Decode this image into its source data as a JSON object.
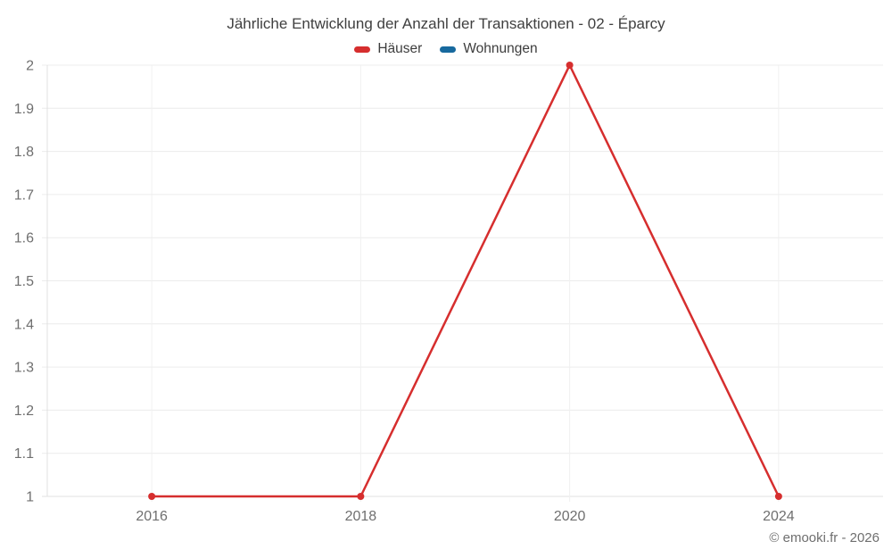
{
  "chart": {
    "title": "Jährliche Entwicklung der Anzahl der Transaktionen - 02 - Éparcy",
    "footer": "© emooki.fr - 2026"
  },
  "chart_data": {
    "type": "line",
    "title": "Jährliche Entwicklung der Anzahl der Transaktionen - 02 - Éparcy",
    "categories": [
      "2016",
      "2018",
      "2020",
      "2024"
    ],
    "series": [
      {
        "name": "Häuser",
        "color": "#d62e2e",
        "values": [
          1,
          1,
          2,
          1
        ]
      },
      {
        "name": "Wohnungen",
        "color": "#17699e",
        "values": []
      }
    ],
    "xlabel": "",
    "ylabel": "",
    "ylim": [
      1,
      2
    ],
    "yticks": [
      1,
      1.1,
      1.2,
      1.3,
      1.4,
      1.5,
      1.6,
      1.7,
      1.8,
      1.9,
      2
    ],
    "grid": true,
    "legend_position": "top"
  }
}
